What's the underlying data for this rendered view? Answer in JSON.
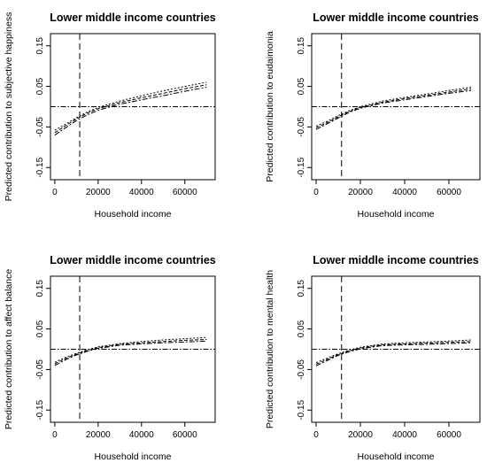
{
  "chart_data": [
    {
      "type": "line",
      "title": "Lower middle income countries",
      "xlabel": "Household income",
      "ylabel": "Predicted contribution to subjective happiness",
      "xlim": [
        -2000,
        74000
      ],
      "ylim": [
        -0.18,
        0.18
      ],
      "x_ticks": [
        "0",
        "20000",
        "40000",
        "60000"
      ],
      "y_ticks": [
        "-0.15",
        "-0.05",
        "0.05",
        "0.15"
      ],
      "vline": 11500,
      "hline": 0,
      "grid": false,
      "x": [
        0,
        5000,
        10000,
        15000,
        20000,
        30000,
        40000,
        50000,
        60000,
        70000
      ],
      "series": [
        {
          "values": [
            -0.058,
            -0.043,
            -0.027,
            -0.013,
            -0.002,
            0.014,
            0.027,
            0.039,
            0.05,
            0.06
          ]
        },
        {
          "values": [
            -0.064,
            -0.047,
            -0.03,
            -0.016,
            -0.005,
            0.01,
            0.022,
            0.033,
            0.044,
            0.054
          ]
        },
        {
          "values": [
            -0.07,
            -0.052,
            -0.034,
            -0.02,
            -0.009,
            0.006,
            0.017,
            0.027,
            0.038,
            0.048
          ]
        }
      ]
    },
    {
      "type": "line",
      "title": "Lower middle income countries",
      "xlabel": "Household income",
      "ylabel": "Predicted contribution to eudaimonia",
      "xlim": [
        -2000,
        74000
      ],
      "ylim": [
        -0.18,
        0.18
      ],
      "x_ticks": [
        "0",
        "20000",
        "40000",
        "60000"
      ],
      "y_ticks": [
        "-0.15",
        "-0.05",
        "0.05",
        "0.15"
      ],
      "vline": 11500,
      "hline": 0,
      "grid": false,
      "x": [
        0,
        5000,
        10000,
        15000,
        20000,
        30000,
        40000,
        50000,
        60000,
        70000
      ],
      "series": [
        {
          "values": [
            -0.048,
            -0.036,
            -0.022,
            -0.01,
            0.0,
            0.014,
            0.023,
            0.031,
            0.04,
            0.048
          ]
        },
        {
          "values": [
            -0.052,
            -0.039,
            -0.025,
            -0.012,
            -0.002,
            0.011,
            0.02,
            0.028,
            0.036,
            0.044
          ]
        },
        {
          "values": [
            -0.056,
            -0.042,
            -0.028,
            -0.014,
            -0.004,
            0.009,
            0.017,
            0.025,
            0.033,
            0.04
          ]
        }
      ]
    },
    {
      "type": "line",
      "title": "Lower middle income countries",
      "xlabel": "Household income",
      "ylabel": "Predicted contribution to affect balance",
      "xlim": [
        -2000,
        74000
      ],
      "ylim": [
        -0.18,
        0.18
      ],
      "x_ticks": [
        "0",
        "20000",
        "40000",
        "60000"
      ],
      "y_ticks": [
        "-0.15",
        "-0.05",
        "0.05",
        "0.15"
      ],
      "vline": 11500,
      "hline": 0,
      "grid": false,
      "x": [
        0,
        5000,
        10000,
        15000,
        20000,
        30000,
        40000,
        50000,
        60000,
        70000
      ],
      "series": [
        {
          "values": [
            -0.032,
            -0.02,
            -0.01,
            -0.001,
            0.006,
            0.014,
            0.019,
            0.023,
            0.026,
            0.029
          ]
        },
        {
          "values": [
            -0.036,
            -0.023,
            -0.012,
            -0.003,
            0.004,
            0.012,
            0.016,
            0.019,
            0.022,
            0.024
          ]
        },
        {
          "values": [
            -0.04,
            -0.026,
            -0.014,
            -0.005,
            0.002,
            0.01,
            0.013,
            0.016,
            0.018,
            0.02
          ]
        }
      ]
    },
    {
      "type": "line",
      "title": "Lower middle income countries",
      "xlabel": "Household income",
      "ylabel": "Predicted contribution to mental health",
      "xlim": [
        -2000,
        74000
      ],
      "ylim": [
        -0.18,
        0.18
      ],
      "x_ticks": [
        "0",
        "20000",
        "40000",
        "60000"
      ],
      "y_ticks": [
        "-0.15",
        "-0.05",
        "0.05",
        "0.15"
      ],
      "vline": 11500,
      "hline": 0,
      "grid": false,
      "x": [
        0,
        5000,
        10000,
        15000,
        20000,
        30000,
        40000,
        50000,
        60000,
        70000
      ],
      "series": [
        {
          "values": [
            -0.033,
            -0.022,
            -0.011,
            -0.002,
            0.005,
            0.013,
            0.016,
            0.018,
            0.02,
            0.023
          ]
        },
        {
          "values": [
            -0.037,
            -0.025,
            -0.013,
            -0.004,
            0.003,
            0.011,
            0.013,
            0.015,
            0.017,
            0.019
          ]
        },
        {
          "values": [
            -0.041,
            -0.028,
            -0.015,
            -0.006,
            0.001,
            0.009,
            0.011,
            0.012,
            0.014,
            0.016
          ]
        }
      ]
    }
  ]
}
